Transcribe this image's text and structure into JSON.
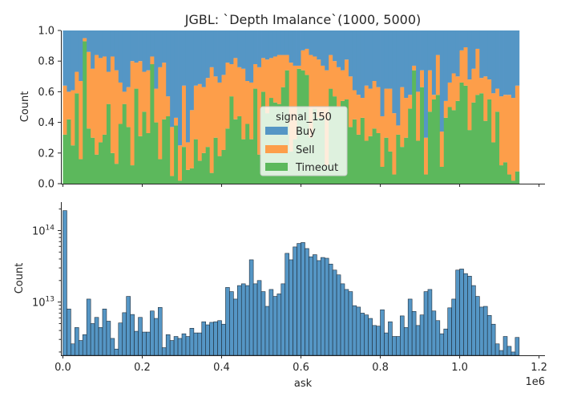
{
  "chart_data": [
    {
      "type": "bar",
      "stacked": "fill",
      "title": "JGBL: `Depth Imalance`(1000, 5000)",
      "xlabel": "",
      "ylabel": "Count",
      "xlim": [
        -5000,
        1215000
      ],
      "ylim": [
        0,
        1.0
      ],
      "yticks": [
        "0.0",
        "0.2",
        "0.4",
        "0.6",
        "0.8",
        "1.0"
      ],
      "xtick_values": [
        0,
        200000,
        400000,
        600000,
        800000,
        1000000,
        1200000
      ],
      "legend": {
        "title": "signal_150",
        "placement": "center",
        "entries": [
          "Buy",
          "Sell",
          "Timeout"
        ]
      },
      "colors": {
        "Buy": "#5596c5",
        "Sell": "#fd9e4a",
        "Timeout": "#5cb85c"
      },
      "bin_start": 0,
      "bin_width": 10000,
      "series": [
        {
          "name": "Timeout",
          "values": [
            0.32,
            0.42,
            0.25,
            0.59,
            0.16,
            0.93,
            0.36,
            0.3,
            0.19,
            0.27,
            0.32,
            0.52,
            0.2,
            0.13,
            0.39,
            0.52,
            0.37,
            0.12,
            0.62,
            0.31,
            0.47,
            0.33,
            0.78,
            0.4,
            0.16,
            0.42,
            0.44,
            0.05,
            0.38,
            0.02,
            0.24,
            0.09,
            0.1,
            0.29,
            0.15,
            0.2,
            0.24,
            0.07,
            0.3,
            0.18,
            0.22,
            0.36,
            0.57,
            0.42,
            0.44,
            0.29,
            0.39,
            0.29,
            0.62,
            0.19,
            0.6,
            0.46,
            0.56,
            0.53,
            0.52,
            0.63,
            0.74,
            0.21,
            0.29,
            0.75,
            0.74,
            0.71,
            0.3,
            0.49,
            0.43,
            0.43,
            0.12,
            0.62,
            0.57,
            0.5,
            0.54,
            0.55,
            0.37,
            0.42,
            0.32,
            0.43,
            0.28,
            0.31,
            0.36,
            0.33,
            0.11,
            0.3,
            0.21,
            0.06,
            0.32,
            0.24,
            0.3,
            0.49,
            0.74,
            0.28,
            0.63,
            0.06,
            0.47,
            0.55,
            0.58,
            0.11,
            0.43,
            0.5,
            0.48,
            0.54,
            0.66,
            0.64,
            0.35,
            0.53,
            0.58,
            0.59,
            0.41,
            0.55,
            0.27,
            0.47,
            0.12,
            0.14,
            0.06,
            0.02,
            0.08
          ]
        },
        {
          "name": "Sell",
          "values": [
            0.32,
            0.18,
            0.36,
            0.14,
            0.51,
            0.02,
            0.5,
            0.45,
            0.65,
            0.55,
            0.51,
            0.21,
            0.63,
            0.61,
            0.27,
            0.08,
            0.26,
            0.68,
            0.17,
            0.49,
            0.26,
            0.41,
            0.05,
            0.22,
            0.6,
            0.37,
            0.13,
            0.32,
            0.05,
            0.23,
            0.4,
            0.18,
            0.38,
            0.35,
            0.5,
            0.43,
            0.45,
            0.69,
            0.4,
            0.48,
            0.49,
            0.43,
            0.21,
            0.4,
            0.32,
            0.46,
            0.28,
            0.37,
            0.16,
            0.57,
            0.22,
            0.35,
            0.26,
            0.3,
            0.32,
            0.21,
            0.1,
            0.58,
            0.48,
            0.02,
            0.13,
            0.17,
            0.54,
            0.34,
            0.38,
            0.34,
            0.62,
            0.22,
            0.23,
            0.26,
            0.2,
            0.26,
            0.33,
            0.19,
            0.26,
            0.13,
            0.36,
            0.31,
            0.31,
            0.3,
            0.33,
            0.32,
            0.41,
            0.4,
            0.06,
            0.39,
            0.26,
            0.09,
            0.03,
            0.32,
            0.11,
            0.24,
            0.27,
            0.03,
            0.26,
            0.23,
            0.11,
            0.16,
            0.24,
            0.16,
            0.21,
            0.25,
            0.33,
            0.22,
            0.3,
            0.1,
            0.29,
            0.13,
            0.32,
            0.15,
            0.45,
            0.44,
            0.52,
            0.54,
            0.56
          ]
        },
        {
          "name": "Buy",
          "values": [
            0.36,
            0.4,
            0.39,
            0.27,
            0.33,
            0.05,
            0.14,
            0.25,
            0.16,
            0.18,
            0.17,
            0.27,
            0.17,
            0.26,
            0.34,
            0.4,
            0.37,
            0.2,
            0.21,
            0.2,
            0.27,
            0.26,
            0.17,
            0.38,
            0.24,
            0.21,
            0.43,
            0.63,
            0.57,
            0.75,
            0.36,
            0.73,
            0.52,
            0.36,
            0.35,
            0.37,
            0.31,
            0.24,
            0.3,
            0.34,
            0.29,
            0.21,
            0.22,
            0.18,
            0.24,
            0.25,
            0.33,
            0.34,
            0.22,
            0.24,
            0.18,
            0.19,
            0.18,
            0.17,
            0.16,
            0.16,
            0.16,
            0.21,
            0.23,
            0.23,
            0.13,
            0.12,
            0.16,
            0.17,
            0.19,
            0.23,
            0.26,
            0.16,
            0.2,
            0.24,
            0.26,
            0.19,
            0.3,
            0.39,
            0.42,
            0.44,
            0.36,
            0.38,
            0.33,
            0.37,
            0.56,
            0.38,
            0.38,
            0.54,
            0.62,
            0.37,
            0.44,
            0.42,
            0.23,
            0.4,
            0.26,
            0.7,
            0.26,
            0.42,
            0.16,
            0.66,
            0.46,
            0.34,
            0.28,
            0.3,
            0.13,
            0.11,
            0.32,
            0.25,
            0.12,
            0.31,
            0.3,
            0.32,
            0.41,
            0.38,
            0.43,
            0.42,
            0.42,
            0.44,
            0.36
          ]
        }
      ]
    },
    {
      "type": "bar",
      "yscale": "log",
      "title": "",
      "xlabel": "ask",
      "ylabel": "Count",
      "xlim": [
        -5000,
        1215000
      ],
      "ylim": [
        1800000000000.0,
        250000000000000.0
      ],
      "xticks": [
        "0.0",
        "0.2",
        "0.4",
        "0.6",
        "0.8",
        "1.0",
        "1.2"
      ],
      "xtick_values": [
        0,
        200000,
        400000,
        600000,
        800000,
        1000000,
        1200000
      ],
      "x_offset_label": "1e6",
      "yticks": [
        {
          "base": "10",
          "exp": "13",
          "value": 10000000000000.0
        },
        {
          "base": "10",
          "exp": "14",
          "value": 100000000000000.0
        }
      ],
      "color": "#5596c5",
      "edgecolor": "#1f2d3a",
      "bin_start": 0,
      "bin_width": 10000,
      "values": [
        190000000000000.0,
        8000000000000.0,
        2600000000000.0,
        4400000000000.0,
        2900000000000.0,
        3500000000000.0,
        11000000000000.0,
        5000000000000.0,
        6100000000000.0,
        4400000000000.0,
        8000000000000.0,
        5400000000000.0,
        3100000000000.0,
        2200000000000.0,
        5100000000000.0,
        7100000000000.0,
        12000000000000.0,
        6700000000000.0,
        3900000000000.0,
        6100000000000.0,
        3800000000000.0,
        3800000000000.0,
        7500000000000.0,
        5900000000000.0,
        8400000000000.0,
        2300000000000.0,
        3500000000000.0,
        2900000000000.0,
        3300000000000.0,
        3100000000000.0,
        3600000000000.0,
        3300000000000.0,
        4300000000000.0,
        3700000000000.0,
        3700000000000.0,
        5300000000000.0,
        4800000000000.0,
        5200000000000.0,
        5300000000000.0,
        5500000000000.0,
        4900000000000.0,
        16000000000000.0,
        14000000000000.0,
        11000000000000.0,
        17000000000000.0,
        18000000000000.0,
        17000000000000.0,
        39000000000000.0,
        18000000000000.0,
        20000000000000.0,
        14000000000000.0,
        8700000000000.0,
        15000000000000.0,
        12000000000000.0,
        13000000000000.0,
        18000000000000.0,
        48000000000000.0,
        39000000000000.0,
        59000000000000.0,
        66000000000000.0,
        68000000000000.0,
        56000000000000.0,
        43000000000000.0,
        46000000000000.0,
        38000000000000.0,
        42000000000000.0,
        41000000000000.0,
        34000000000000.0,
        28000000000000.0,
        24000000000000.0,
        18000000000000.0,
        15000000000000.0,
        14000000000000.0,
        8900000000000.0,
        8500000000000.0,
        7000000000000.0,
        6600000000000.0,
        5900000000000.0,
        4700000000000.0,
        4600000000000.0,
        7800000000000.0,
        3700000000000.0,
        5300000000000.0,
        3300000000000.0,
        3300000000000.0,
        6400000000000.0,
        4400000000000.0,
        11000000000000.0,
        7400000000000.0,
        4700000000000.0,
        6600000000000.0,
        14000000000000.0,
        15000000000000.0,
        7500000000000.0,
        5500000000000.0,
        3600000000000.0,
        4200000000000.0,
        8300000000000.0,
        11000000000000.0,
        28000000000000.0,
        29000000000000.0,
        25000000000000.0,
        23000000000000.0,
        17000000000000.0,
        12000000000000.0,
        8500000000000.0,
        8700000000000.0,
        6500000000000.0,
        4900000000000.0,
        2600000000000.0,
        2100000000000.0,
        3300000000000.0,
        2400000000000.0,
        2000000000000.0,
        3200000000000.0
      ]
    }
  ]
}
